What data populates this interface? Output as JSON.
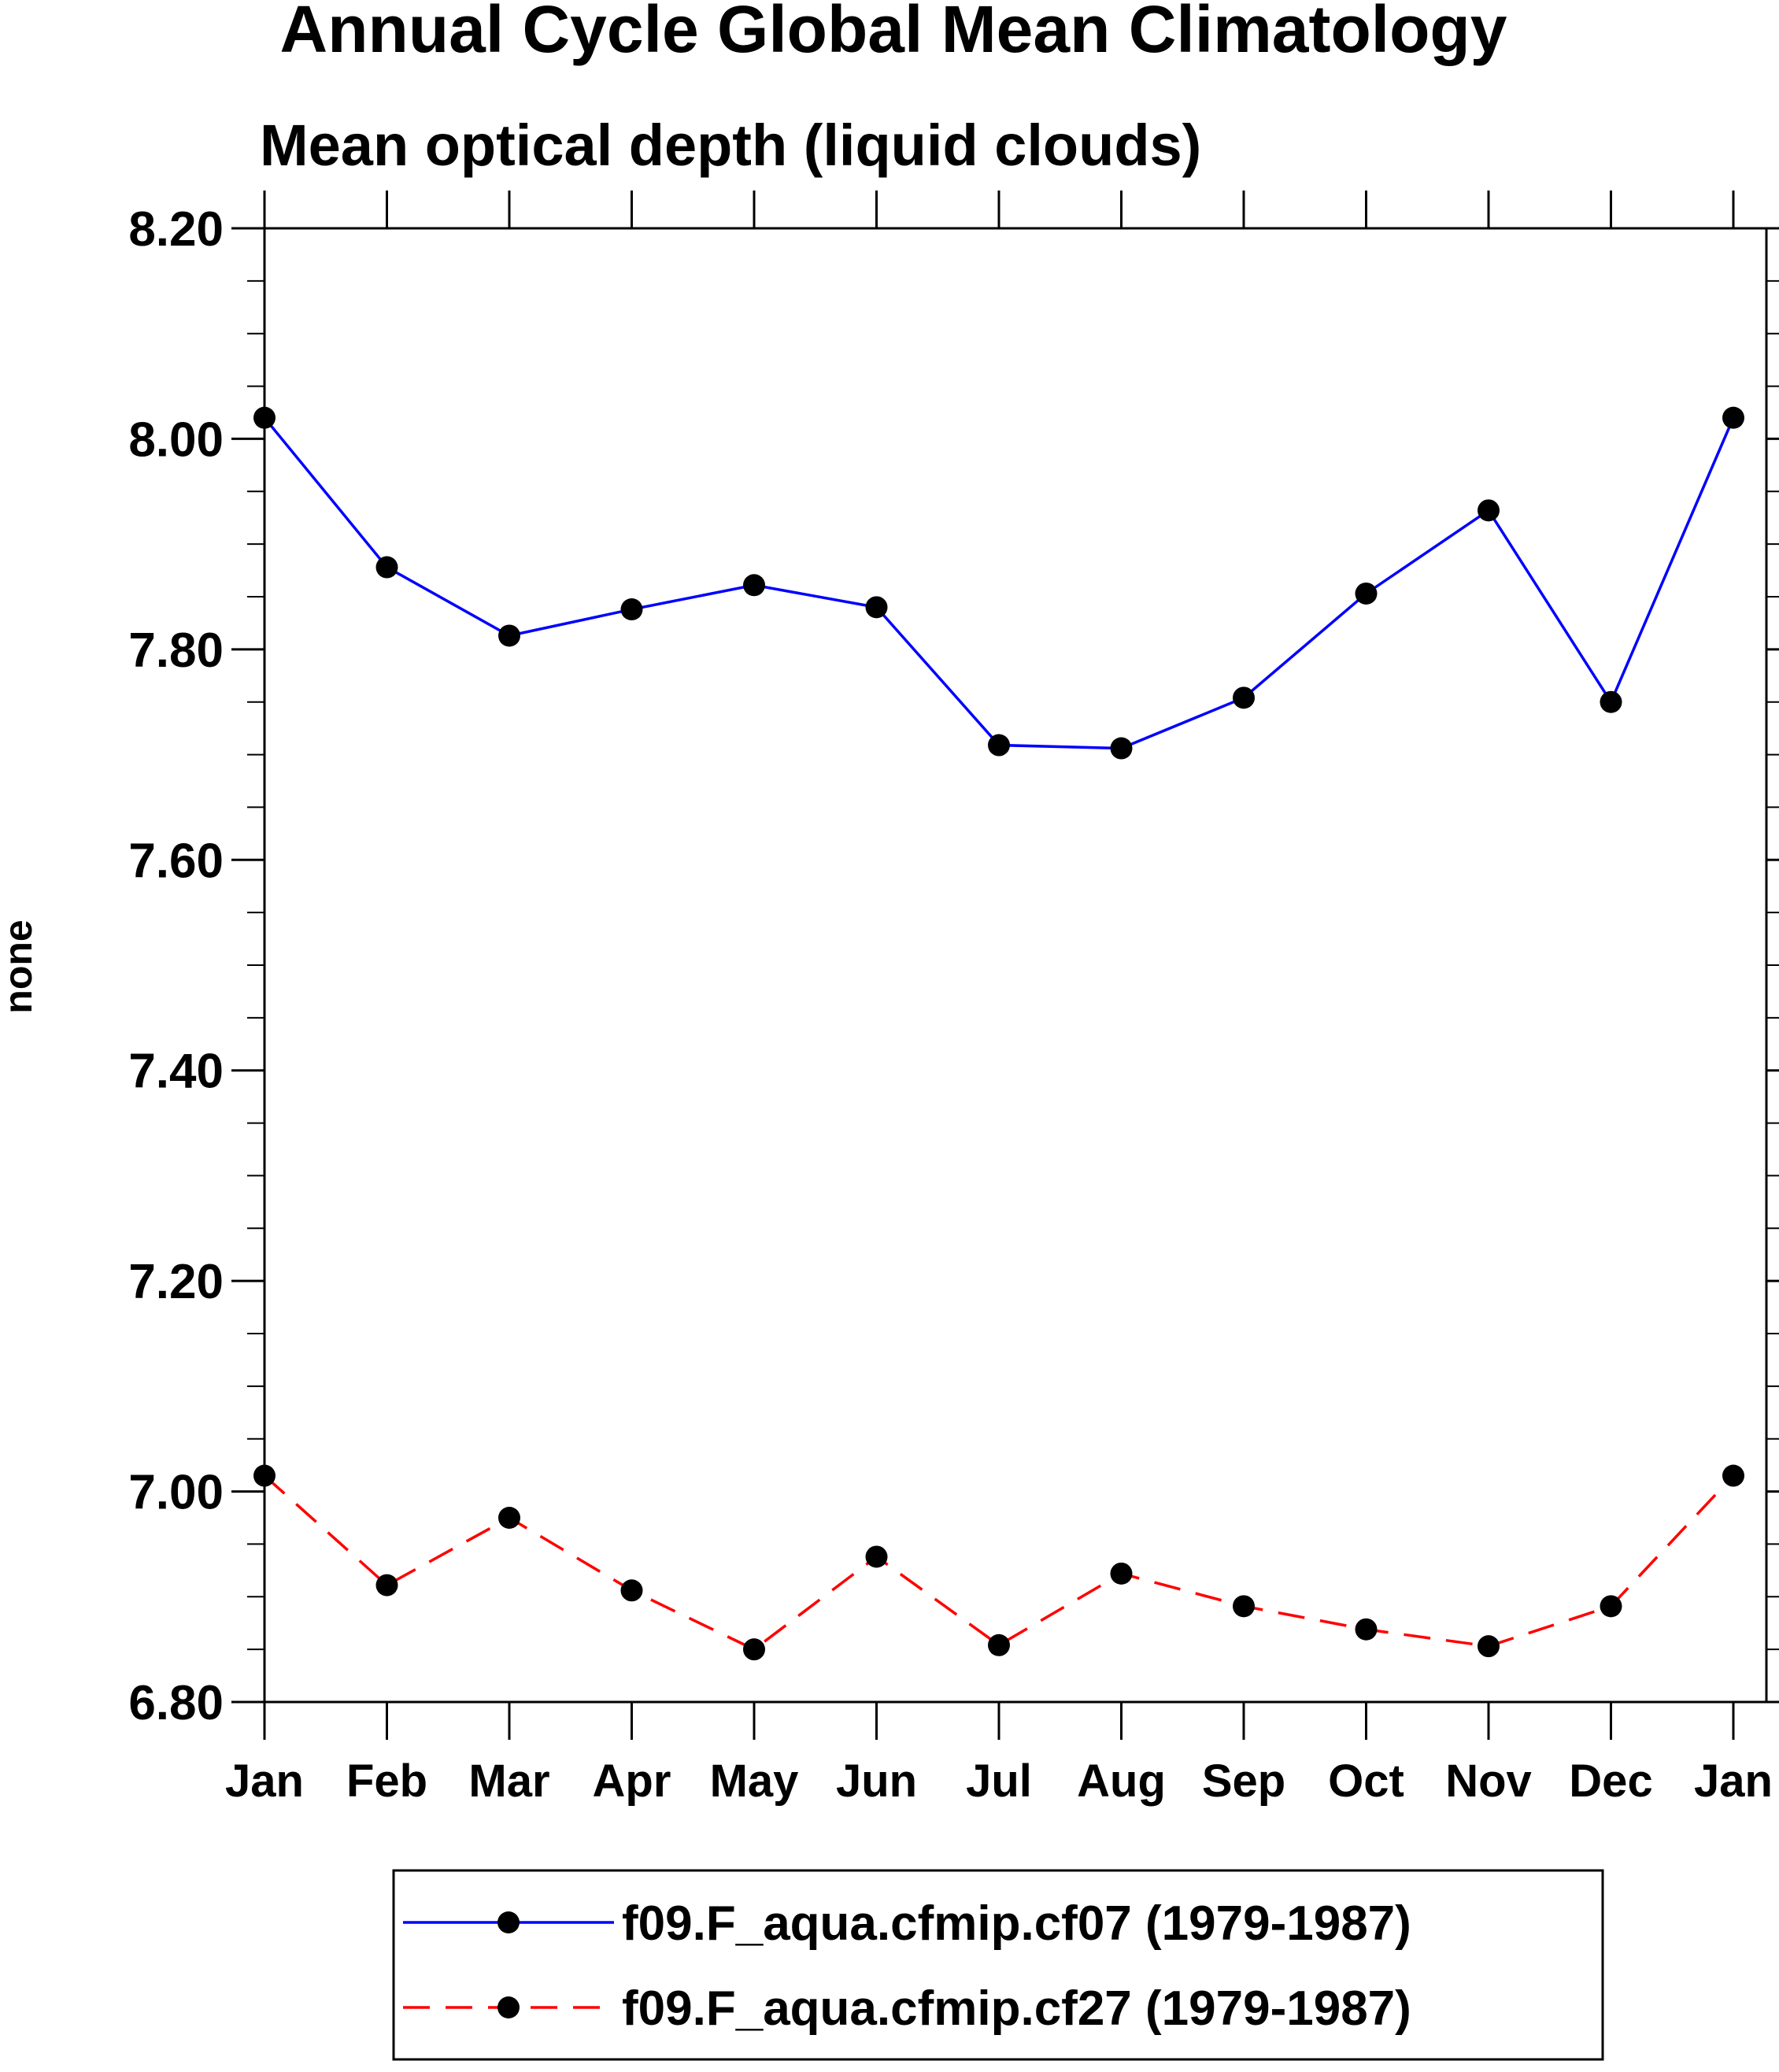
{
  "chart_data": {
    "type": "line",
    "title": "Annual Cycle Global Mean Climatology",
    "subtitle": "Mean optical depth (liquid clouds)",
    "xlabel": "",
    "ylabel": "none",
    "categories": [
      "Jan",
      "Feb",
      "Mar",
      "Apr",
      "May",
      "Jun",
      "Jul",
      "Aug",
      "Sep",
      "Oct",
      "Nov",
      "Dec",
      "Jan"
    ],
    "ylim": [
      6.8,
      8.2
    ],
    "yticks": [
      "8.20",
      "8.00",
      "7.80",
      "7.60",
      "7.40",
      "7.20",
      "7.00",
      "6.80"
    ],
    "grid": false,
    "legend_position": "bottom",
    "series": [
      {
        "name": "f09.F_aqua.cfmip.cf07 (1979-1987)",
        "color": "#0000ff",
        "dash": "solid",
        "values": [
          8.02,
          7.878,
          7.813,
          7.838,
          7.861,
          7.84,
          7.709,
          7.706,
          7.754,
          7.853,
          7.932,
          7.75,
          8.02
        ]
      },
      {
        "name": "f09.F_aqua.cfmip.cf27 (1979-1987)",
        "color": "#ff0000",
        "dash": "dashed",
        "values": [
          7.015,
          6.911,
          6.975,
          6.906,
          6.85,
          6.938,
          6.854,
          6.922,
          6.891,
          6.869,
          6.853,
          6.891,
          7.015
        ]
      }
    ]
  }
}
